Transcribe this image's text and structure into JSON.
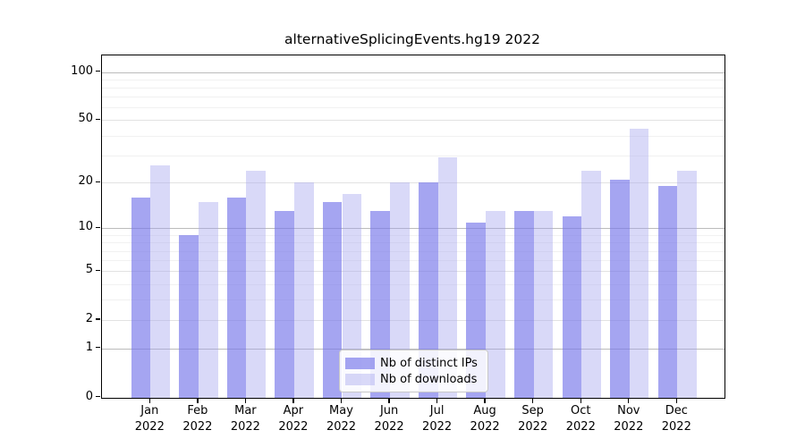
{
  "title": "alternativeSplicingEvents.hg19 2022",
  "legend": {
    "items": [
      {
        "label": "Nb of distinct IPs",
        "series": "distinct_ips"
      },
      {
        "label": "Nb of downloads",
        "series": "downloads"
      }
    ]
  },
  "colors": {
    "distinct_ips": "rgba(118,118,234,0.66)",
    "downloads": "rgba(165,165,238,0.42)",
    "grid_major": "#bbbbbb",
    "grid_mid": "#e2e2e2",
    "grid_minor": "#f1f1f1",
    "spine": "#000000"
  },
  "y_axis": {
    "tick_labels": [
      "100",
      "50",
      "20",
      "10",
      "5",
      "2",
      "1",
      "0"
    ],
    "tick_values": [
      100,
      50,
      20,
      10,
      5,
      2,
      1,
      0
    ],
    "grid_major_values": [
      1,
      10,
      100
    ],
    "grid_mid_values": [
      2,
      5,
      20,
      50
    ],
    "grid_minor_values": [
      3,
      4,
      6,
      7,
      8,
      9,
      30,
      40,
      60,
      70,
      80,
      90
    ]
  },
  "x_axis": {
    "months": [
      "Jan",
      "Feb",
      "Mar",
      "Apr",
      "May",
      "Jun",
      "Jul",
      "Aug",
      "Sep",
      "Oct",
      "Nov",
      "Dec"
    ],
    "year": "2022"
  },
  "chart_data": {
    "type": "bar",
    "title": "alternativeSplicingEvents.hg19 2022",
    "categories": [
      "Jan 2022",
      "Feb 2022",
      "Mar 2022",
      "Apr 2022",
      "May 2022",
      "Jun 2022",
      "Jul 2022",
      "Aug 2022",
      "Sep 2022",
      "Oct 2022",
      "Nov 2022",
      "Dec 2022"
    ],
    "series": [
      {
        "name": "Nb of distinct IPs",
        "values": [
          16,
          9,
          16,
          13,
          15,
          13,
          20,
          11,
          13,
          12,
          21,
          19
        ]
      },
      {
        "name": "Nb of downloads",
        "values": [
          26,
          15,
          24,
          20,
          17,
          20,
          29,
          13,
          13,
          24,
          44,
          24
        ]
      }
    ],
    "xlabel": "",
    "ylabel": "",
    "yscale": "symlog",
    "yticks": [
      0,
      1,
      2,
      5,
      10,
      20,
      50,
      100
    ],
    "ylim": [
      0,
      127
    ],
    "grid": true,
    "legend_position": "lower center"
  }
}
